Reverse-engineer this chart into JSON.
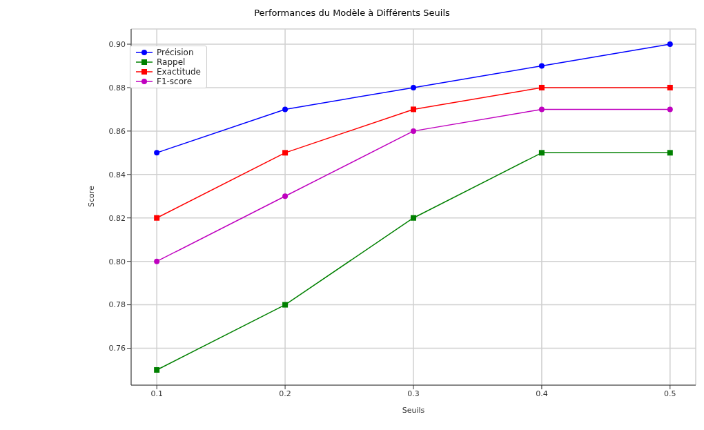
{
  "chart_data": {
    "type": "line",
    "title": "Performances du Modèle à Différents Seuils",
    "xlabel": "Seuils",
    "ylabel": "Score",
    "x": [
      0.1,
      0.2,
      0.3,
      0.4,
      0.5
    ],
    "series": [
      {
        "name": "Précision",
        "color": "#0000ff",
        "values": [
          0.85,
          0.87,
          0.88,
          0.89,
          0.9
        ],
        "marker": "circle"
      },
      {
        "name": "Rappel",
        "color": "#008000",
        "values": [
          0.75,
          0.78,
          0.82,
          0.85,
          0.85
        ],
        "marker": "square"
      },
      {
        "name": "Exactitude",
        "color": "#ff0000",
        "values": [
          0.82,
          0.85,
          0.87,
          0.88,
          0.88
        ],
        "marker": "square"
      },
      {
        "name": "F1-score",
        "color": "#bf00bf",
        "values": [
          0.8,
          0.83,
          0.86,
          0.87,
          0.87
        ],
        "marker": "circle"
      }
    ],
    "xlim": [
      0.08,
      0.52
    ],
    "xticks": [
      0.1,
      0.2,
      0.3,
      0.4,
      0.5
    ],
    "ylim": [
      0.743,
      0.907
    ],
    "yticks": [
      {
        "value": 0.76,
        "label": "0.76"
      },
      {
        "value": 0.78,
        "label": "0.78"
      },
      {
        "value": 0.8,
        "label": "0.80"
      },
      {
        "value": 0.82,
        "label": "0.82"
      },
      {
        "value": 0.84,
        "label": "0.84"
      },
      {
        "value": 0.86,
        "label": "0.86"
      },
      {
        "value": 0.88,
        "label": "0.88"
      },
      {
        "value": 0.9,
        "label": "0.90"
      }
    ],
    "grid": true,
    "legend": "top left",
    "line_style": "solid"
  }
}
